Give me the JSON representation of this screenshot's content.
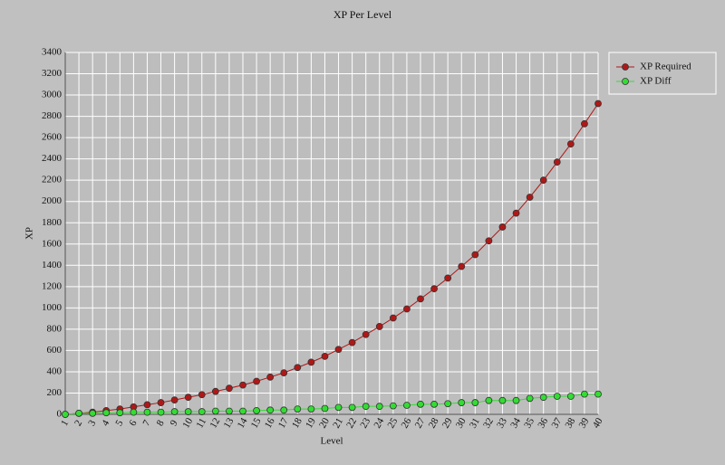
{
  "chart_data": {
    "type": "line",
    "title": "XP Per Level",
    "x_label": "Level",
    "y_label": "XP",
    "categories": [
      "1",
      "2",
      "3",
      "4",
      "5",
      "6",
      "7",
      "8",
      "9",
      "10",
      "11",
      "12",
      "13",
      "14",
      "15",
      "16",
      "17",
      "18",
      "19",
      "20",
      "21",
      "22",
      "23",
      "24",
      "25",
      "26",
      "27",
      "28",
      "29",
      "30",
      "31",
      "32",
      "33",
      "34",
      "35",
      "36",
      "37",
      "38",
      "39",
      "40"
    ],
    "series": [
      {
        "name": "XP Required",
        "color": "#b01818",
        "values": [
          0,
          10,
          20,
          35,
          50,
          70,
          90,
          110,
          135,
          160,
          185,
          215,
          245,
          275,
          310,
          350,
          390,
          440,
          490,
          545,
          610,
          675,
          750,
          825,
          905,
          990,
          1085,
          1180,
          1280,
          1390,
          1500,
          1630,
          1760,
          1890,
          2040,
          2200,
          2370,
          2540,
          2730,
          2920
        ]
      },
      {
        "name": "XP Diff",
        "color": "#33dd33",
        "values": [
          0,
          10,
          10,
          15,
          15,
          20,
          20,
          20,
          25,
          25,
          25,
          30,
          30,
          30,
          35,
          40,
          40,
          50,
          50,
          55,
          65,
          65,
          75,
          75,
          80,
          85,
          95,
          95,
          100,
          110,
          110,
          130,
          130,
          130,
          150,
          160,
          170,
          170,
          190,
          190
        ]
      }
    ],
    "ylim": [
      0,
      3400
    ],
    "yticks": [
      0,
      200,
      400,
      600,
      800,
      1000,
      1200,
      1400,
      1600,
      1800,
      2000,
      2200,
      2400,
      2600,
      2800,
      3000,
      3200,
      3400
    ],
    "grid": true,
    "legend": "right"
  }
}
